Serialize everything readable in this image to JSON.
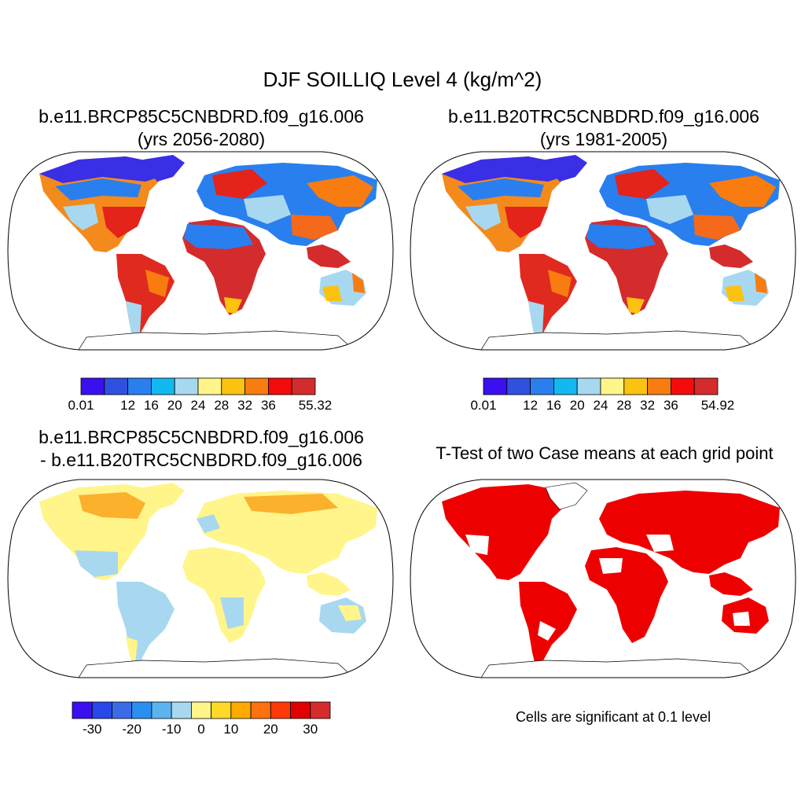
{
  "figure": {
    "title": "DJF SOILLIQ Level 4 (kg/m^2)"
  },
  "panels": [
    {
      "name": "future-case",
      "title_line1": "b.e11.BRCP85C5CNBDRD.f09_g16.006",
      "title_line2": "(yrs 2056-2080)",
      "colorbar": {
        "colors": [
          "#3a10f0",
          "#3050e0",
          "#2a7fee",
          "#12b8f0",
          "#a8d8f0",
          "#fff58a",
          "#fbc20f",
          "#f87c10",
          "#f40c0c",
          "#d42c2c"
        ],
        "labels": [
          "0.01",
          "12",
          "16",
          "20",
          "24",
          "28",
          "32",
          "36",
          "55.32"
        ]
      }
    },
    {
      "name": "historical-case",
      "title_line1": "b.e11.B20TRC5CNBDRD.f09_g16.006",
      "title_line2": "(yrs 1981-2005)",
      "colorbar": {
        "colors": [
          "#3a10f0",
          "#3050e0",
          "#2a7fee",
          "#12b8f0",
          "#a8d8f0",
          "#fff58a",
          "#fbc20f",
          "#f87c10",
          "#f40c0c",
          "#d42c2c"
        ],
        "labels": [
          "0.01",
          "12",
          "16",
          "20",
          "24",
          "28",
          "32",
          "36",
          "54.92"
        ]
      }
    },
    {
      "name": "difference",
      "title_line1": "b.e11.BRCP85C5CNBDRD.f09_g16.006",
      "title_line2": "- b.e11.B20TRC5CNBDRD.f09_g16.006",
      "colorbar": {
        "colors": [
          "#3a10f0",
          "#2848e8",
          "#3a6ce8",
          "#2a90f0",
          "#5ab4f0",
          "#a8d8f0",
          "#fff58a",
          "#ffd828",
          "#ffaa00",
          "#ff7010",
          "#ff3808",
          "#e00000",
          "#d42c2c"
        ],
        "labels": [
          "-30",
          "-20",
          "-10",
          "0",
          "10",
          "20",
          "30"
        ]
      }
    },
    {
      "name": "t-test",
      "title_line1": "T-Test of two Case means at each grid point",
      "note": "Cells are significant at 0.1 level"
    }
  ]
}
